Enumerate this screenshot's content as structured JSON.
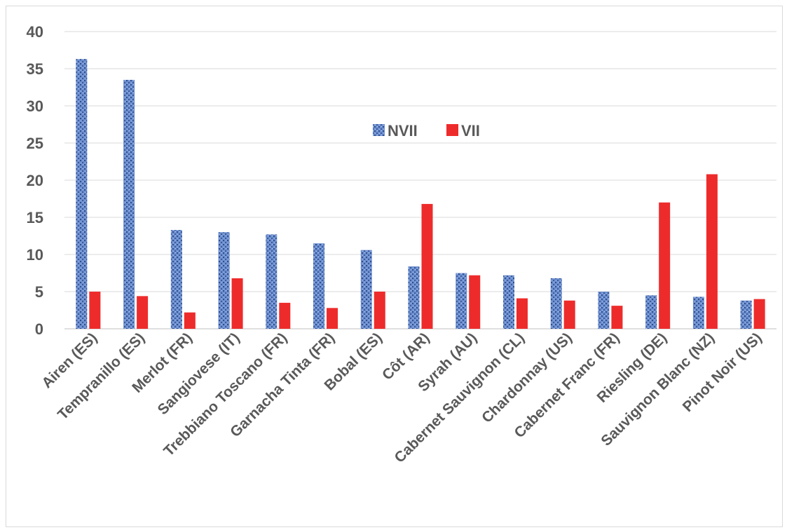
{
  "chart_data": {
    "type": "bar",
    "categories": [
      "Airen (ES)",
      "Tempranillo (ES)",
      "Merlot (FR)",
      "Sangiovese (IT)",
      "Trebbiano Toscano (FR)",
      "Garnacha Tinta (FR)",
      "Bobal (ES)",
      "Côt (AR)",
      "Syrah (AU)",
      "Cabernet Sauvignon (CL)",
      "Chardonnay (US)",
      "Cabernet Franc (FR)",
      "Riesling (DE)",
      "Sauvignon Blanc (NZ)",
      "Pinot Noir (US)"
    ],
    "series": [
      {
        "name": "NVII",
        "color": "#5b7fc4",
        "values": [
          36.3,
          33.5,
          13.3,
          13.0,
          12.7,
          11.5,
          10.6,
          8.4,
          7.5,
          7.2,
          6.8,
          5.0,
          4.5,
          4.3,
          3.8
        ]
      },
      {
        "name": "VII",
        "color": "#ee2b2b",
        "values": [
          5.0,
          4.4,
          2.2,
          6.8,
          3.5,
          2.8,
          5.0,
          16.8,
          7.2,
          4.1,
          3.8,
          3.1,
          17.0,
          20.8,
          4.0
        ]
      }
    ],
    "ylim": [
      0,
      40
    ],
    "yticks": [
      0,
      5,
      10,
      15,
      20,
      25,
      30,
      35,
      40
    ],
    "grid": true,
    "legend": "top-center",
    "title": "",
    "xlabel": "",
    "ylabel": ""
  }
}
